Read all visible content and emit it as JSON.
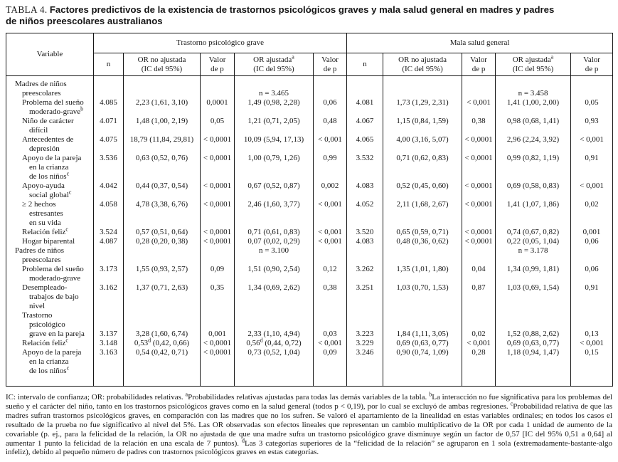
{
  "title": {
    "label": "TABLA 4.",
    "text": "Factores predictivos de la existencia de trastornos psicológicos graves y mala salud general en madres y padres\nde niños preescolares australianos"
  },
  "table": {
    "variable_header": "Variable",
    "groups": [
      {
        "label": "Trastorno psicológico grave"
      },
      {
        "label": "Mala salud general"
      }
    ],
    "subheaders": [
      "n",
      "OR no ajustada\n(IC del 95%)",
      "Valor\nde p",
      "OR ajustadaᵃ\n(IC del 95%)",
      "Valor\nde p"
    ],
    "sections": [
      {
        "label": "Madres de niños\npreescolares",
        "n_left": "n = 3.465",
        "n_right": "n = 3.458",
        "n_offset": 1,
        "rows": [
          {
            "variable": "Problema del sueño\nmoderado-graveᵇ",
            "cells": [
              "4.085",
              "2,23 (1,61, 3,10)",
              "0,0001",
              "1,49 (0,98, 2,28)",
              "0,06",
              "4.081",
              "1,73 (1,29, 2,31)",
              "< 0,001",
              "1,41 (1,00, 2,00)",
              "0,05"
            ]
          },
          {
            "variable": "Niño de carácter\ndifícil",
            "cells": [
              "4.071",
              "1,48 (1,00, 2,19)",
              "0,05",
              "1,21 (0,71, 2,05)",
              "0,48",
              "4.067",
              "1,15 (0,84, 1,59)",
              "0,38",
              "0,98 (0,68, 1,41)",
              "0,93"
            ]
          },
          {
            "variable": "Antecedentes de\ndepresión",
            "cells": [
              "4.075",
              "18,79 (11,84, 29,81)",
              "< 0,0001",
              "10,09 (5,94, 17,13)",
              "< 0,001",
              "4.065",
              "4,00 (3,16, 5,07)",
              "< 0,0001",
              "2,96 (2,24, 3,92)",
              "< 0,001"
            ]
          },
          {
            "variable": "Apoyo de la pareja\nen la crianza\nde los niñosᶜ",
            "cells": [
              "3.536",
              "0,63 (0,52, 0,76)",
              "< 0,0001",
              "1,00 (0,79, 1,26)",
              "0,99",
              "3.532",
              "0,71 (0,62, 0,83)",
              "< 0,0001",
              "0,99 (0,82, 1,19)",
              "0,91"
            ]
          },
          {
            "variable": "Apoyo-ayuda\nsocial globalᶜ",
            "cells": [
              "4.042",
              "0,44 (0,37, 0,54)",
              "< 0,0001",
              "0,67 (0,52, 0,87)",
              "0,002",
              "4.083",
              "0,52 (0,45, 0,60)",
              "< 0,0001",
              "0,69 (0,58, 0,83)",
              "< 0,001"
            ]
          },
          {
            "variable": "≥ 2 hechos\nestresantes\nen su vida",
            "cells": [
              "4.058",
              "4,78 (3,38, 6,76)",
              "< 0,0001",
              "2,46 (1,60, 3,77)",
              "< 0,001",
              "4.052",
              "2,11 (1,68, 2,67)",
              "< 0,0001",
              "1,41 (1,07, 1,86)",
              "0,02"
            ]
          },
          {
            "variable": "Relación felizᶜ",
            "cells": [
              "3.524",
              "0,57 (0,51, 0,64)",
              "< 0,0001",
              "0,71 (0,61, 0,83)",
              "< 0,001",
              "3.520",
              "0,65 (0,59, 0,71)",
              "< 0,0001",
              "0,74 (0,67, 0,82)",
              "0,001"
            ]
          },
          {
            "variable": "Hogar biparental",
            "cells": [
              "4.087",
              "0,28 (0,20, 0,38)",
              "< 0,0001",
              "0,07 (0,02, 0,29)",
              "< 0,001",
              "4.083",
              "0,48 (0,36, 0,62)",
              "< 0,0001",
              "0,22 (0,05, 1,04)",
              "0,06"
            ]
          }
        ]
      },
      {
        "label": "Padres de niños\npreescolares",
        "n_left": "n = 3.100",
        "n_right": "n = 3.178",
        "n_offset": 0,
        "rows": [
          {
            "variable": "Problema del sueño\nmoderado-grave",
            "cells": [
              "3.173",
              "1,55 (0,93, 2,57)",
              "0,09",
              "1,51 (0,90, 2,54)",
              "0,12",
              "3.262",
              "1,35 (1,01, 1,80)",
              "0,04",
              "1,34 (0,99, 1,81)",
              "0,06"
            ]
          },
          {
            "variable": "Desempleado-\ntrabajos de bajo\nnivel",
            "cells": [
              "3.162",
              "1,37 (0,71, 2,63)",
              "0,35",
              "1,34 (0,69, 2,62)",
              "0,38",
              "3.251",
              "1,03 (0,70, 1,53)",
              "0,87",
              "1,03 (0,69, 1,54)",
              "0,91"
            ]
          },
          {
            "variable": "Trastorno\npsicológico\ngrave en la pareja",
            "valign": "bottom",
            "cells": [
              "3.137",
              "3,28 (1,60, 6,74)",
              "0,001",
              "2,33 (1,10, 4,94)",
              "0,03",
              "3.223",
              "1,84 (1,11, 3,05)",
              "0,02",
              "1,52 (0,88, 2,62)",
              "0,13"
            ]
          },
          {
            "variable": "Relación felizᶜ",
            "cells": [
              "3.148",
              "0,53ᵈ (0,42, 0,66)",
              "< 0,0001",
              "0,56ᵈ (0,44, 0,72)",
              "< 0,001",
              "3.229",
              "0,69 (0,63, 0,77)",
              "< 0,001",
              "0,69 (0,63, 0,77)",
              "< 0,001"
            ]
          },
          {
            "variable": "Apoyo de la pareja\nen la crianza\nde los niñosᶜ",
            "cells": [
              "3.163",
              "0,54 (0,42, 0,71)",
              "< 0,0001",
              "0,73 (0,52, 1,04)",
              "0,09",
              "3.246",
              "0,90 (0,74, 1,09)",
              "0,28",
              "1,18 (0,94, 1,47)",
              "0,15"
            ]
          }
        ]
      }
    ]
  },
  "footnote": "IC: intervalo de confianza; OR: probabilidades relativas. ᵃProbabilidades relativas ajustadas para todas las demás variables de la tabla. ᵇLa interacción no fue significativa para los problemas del sueño y el carácter del niño, tanto en los trastornos psicológicos graves como en la salud general (todos p < 0,19), por lo cual se excluyó de ambas regresiones. ᶜProbabilidad relativa de que las madres sufran trastornos psicológicos graves, en comparación con las madres que no los sufren. Se valoró el apartamiento de la linealidad en estas variables ordinales; en todos los casos el resultado de la prueba no fue significativo al nivel del 5%. Las OR observadas son efectos lineales que representan un cambio multiplicativo de la OR por cada 1 unidad de aumento de la covariable (p. ej., para la felicidad de la relación, la OR no ajustada de que una madre sufra un trastorno psicológico grave disminuye según un factor de 0,57 [IC del 95% 0,51 a 0,64] al aumentar 1 punto la felicidad de la relación en una escala de 7 puntos). ᵈLas 3 categorías superiores de la “felicidad de la relación” se agruparon en 1 sola (extremadamente-bastante-algo infeliz), debido al pequeño número de padres con trastornos psicológicos graves en estas categorías."
}
